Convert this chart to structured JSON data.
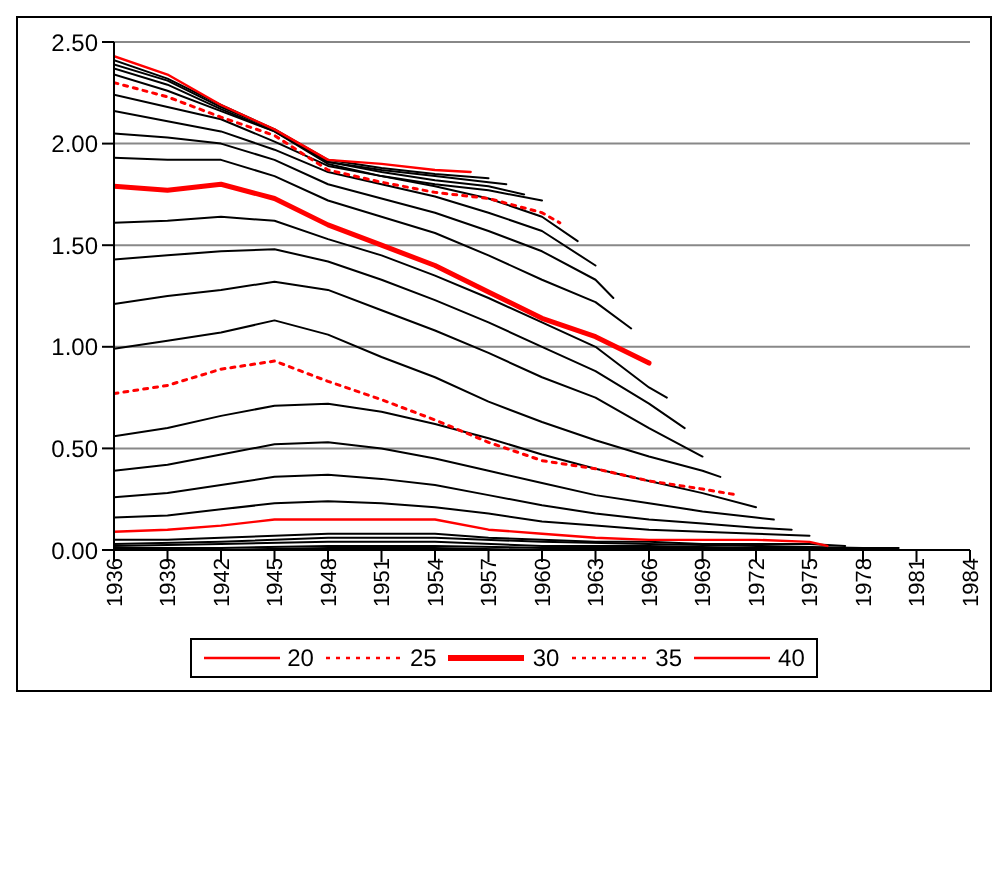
{
  "chart_data": {
    "type": "line",
    "xlim": [
      1936,
      1984
    ],
    "xticks": [
      1936,
      1939,
      1942,
      1945,
      1948,
      1951,
      1954,
      1957,
      1960,
      1963,
      1966,
      1969,
      1972,
      1975,
      1978,
      1981,
      1984
    ],
    "ylim": [
      0,
      2.5
    ],
    "yticks": [
      {
        "value": 0,
        "label": "0.00"
      },
      {
        "value": 0.5,
        "label": "0.50"
      },
      {
        "value": 1,
        "label": "1.00"
      },
      {
        "value": 1.5,
        "label": "1.50"
      },
      {
        "value": 2,
        "label": "2.00"
      },
      {
        "value": 2.5,
        "label": "2.50"
      }
    ],
    "grid": "y",
    "legend": "bottom",
    "marker": "none",
    "series": [
      {
        "color": "#000000",
        "x": [
          1936,
          1942,
          1948,
          1954,
          1960,
          1966,
          1972,
          1978,
          1981
        ],
        "values": [
          0.0,
          0.0,
          0.01,
          0.01,
          0.0,
          0.0,
          0.0,
          0.0,
          0.0
        ]
      },
      {
        "color": "#000000",
        "x": [
          1936,
          1942,
          1948,
          1954,
          1960,
          1966,
          1972,
          1978,
          1980
        ],
        "values": [
          0.01,
          0.01,
          0.02,
          0.02,
          0.01,
          0.01,
          0.01,
          0.01,
          0.01
        ]
      },
      {
        "color": "#000000",
        "x": [
          1936,
          1942,
          1948,
          1954,
          1960,
          1966,
          1972,
          1979
        ],
        "values": [
          0.02,
          0.03,
          0.04,
          0.04,
          0.02,
          0.02,
          0.01,
          0.01
        ]
      },
      {
        "color": "#000000",
        "x": [
          1936,
          1942,
          1948,
          1954,
          1960,
          1966,
          1972,
          1978
        ],
        "values": [
          0.03,
          0.04,
          0.06,
          0.06,
          0.04,
          0.03,
          0.02,
          0.01
        ]
      },
      {
        "color": "#000000",
        "x": [
          1936,
          1939,
          1942,
          1945,
          1948,
          1951,
          1954,
          1957,
          1960,
          1963,
          1966,
          1969,
          1972,
          1975,
          1977
        ],
        "values": [
          0.05,
          0.05,
          0.06,
          0.07,
          0.08,
          0.08,
          0.08,
          0.06,
          0.05,
          0.04,
          0.04,
          0.03,
          0.03,
          0.03,
          0.02
        ]
      },
      {
        "name": "20",
        "color": "#ff0000",
        "line_style": "solid",
        "x": [
          1936,
          1939,
          1942,
          1945,
          1948,
          1951,
          1954,
          1957,
          1960,
          1963,
          1966,
          1969,
          1972,
          1975,
          1976
        ],
        "values": [
          0.09,
          0.1,
          0.12,
          0.15,
          0.15,
          0.15,
          0.15,
          0.1,
          0.08,
          0.06,
          0.05,
          0.05,
          0.05,
          0.04,
          0.02
        ]
      },
      {
        "color": "#000000",
        "x": [
          1936,
          1939,
          1942,
          1945,
          1948,
          1951,
          1954,
          1957,
          1960,
          1963,
          1966,
          1969,
          1972,
          1975
        ],
        "values": [
          0.16,
          0.17,
          0.2,
          0.23,
          0.24,
          0.23,
          0.21,
          0.18,
          0.14,
          0.12,
          0.1,
          0.09,
          0.08,
          0.07
        ]
      },
      {
        "color": "#000000",
        "x": [
          1936,
          1939,
          1942,
          1945,
          1948,
          1951,
          1954,
          1957,
          1960,
          1963,
          1966,
          1969,
          1972,
          1974
        ],
        "values": [
          0.26,
          0.28,
          0.32,
          0.36,
          0.37,
          0.35,
          0.32,
          0.27,
          0.22,
          0.18,
          0.15,
          0.13,
          0.11,
          0.1
        ]
      },
      {
        "color": "#000000",
        "x": [
          1936,
          1939,
          1942,
          1945,
          1948,
          1951,
          1954,
          1957,
          1960,
          1963,
          1966,
          1969,
          1972,
          1973
        ],
        "values": [
          0.39,
          0.42,
          0.47,
          0.52,
          0.53,
          0.5,
          0.45,
          0.39,
          0.33,
          0.27,
          0.23,
          0.19,
          0.16,
          0.15
        ]
      },
      {
        "color": "#000000",
        "x": [
          1936,
          1939,
          1942,
          1945,
          1948,
          1951,
          1954,
          1957,
          1960,
          1963,
          1966,
          1969,
          1972
        ],
        "values": [
          0.56,
          0.6,
          0.66,
          0.71,
          0.72,
          0.68,
          0.62,
          0.55,
          0.47,
          0.4,
          0.34,
          0.28,
          0.21
        ]
      },
      {
        "name": "25",
        "color": "#ff0000",
        "line_style": "dotted",
        "x": [
          1936,
          1939,
          1942,
          1945,
          1948,
          1951,
          1954,
          1957,
          1960,
          1963,
          1966,
          1969,
          1971
        ],
        "values": [
          0.77,
          0.81,
          0.89,
          0.93,
          0.83,
          0.74,
          0.64,
          0.53,
          0.44,
          0.4,
          0.34,
          0.3,
          0.27
        ]
      },
      {
        "color": "#000000",
        "x": [
          1936,
          1939,
          1942,
          1945,
          1948,
          1951,
          1954,
          1957,
          1960,
          1963,
          1966,
          1969,
          1970
        ],
        "values": [
          0.99,
          1.03,
          1.07,
          1.13,
          1.06,
          0.95,
          0.85,
          0.73,
          0.63,
          0.54,
          0.46,
          0.39,
          0.36
        ]
      },
      {
        "color": "#000000",
        "x": [
          1936,
          1939,
          1942,
          1945,
          1948,
          1951,
          1954,
          1957,
          1960,
          1963,
          1966,
          1969
        ],
        "values": [
          1.21,
          1.25,
          1.28,
          1.32,
          1.28,
          1.18,
          1.08,
          0.97,
          0.85,
          0.75,
          0.6,
          0.46
        ]
      },
      {
        "color": "#000000",
        "x": [
          1936,
          1939,
          1942,
          1945,
          1948,
          1951,
          1954,
          1957,
          1960,
          1963,
          1966,
          1968
        ],
        "values": [
          1.43,
          1.45,
          1.47,
          1.48,
          1.42,
          1.33,
          1.23,
          1.12,
          1.0,
          0.88,
          0.72,
          0.6
        ]
      },
      {
        "color": "#000000",
        "x": [
          1936,
          1939,
          1942,
          1945,
          1948,
          1951,
          1954,
          1957,
          1960,
          1963,
          1966,
          1967
        ],
        "values": [
          1.61,
          1.62,
          1.64,
          1.62,
          1.53,
          1.45,
          1.35,
          1.24,
          1.12,
          1.0,
          0.8,
          0.75
        ]
      },
      {
        "name": "30",
        "color": "#ff0000",
        "line_style": "solid",
        "x": [
          1936,
          1939,
          1942,
          1945,
          1948,
          1951,
          1954,
          1957,
          1960,
          1963,
          1966
        ],
        "values": [
          1.79,
          1.77,
          1.8,
          1.73,
          1.6,
          1.5,
          1.4,
          1.27,
          1.14,
          1.05,
          0.92
        ]
      },
      {
        "color": "#000000",
        "x": [
          1936,
          1939,
          1942,
          1945,
          1948,
          1951,
          1954,
          1957,
          1960,
          1963,
          1965
        ],
        "values": [
          1.93,
          1.92,
          1.92,
          1.84,
          1.72,
          1.64,
          1.56,
          1.45,
          1.33,
          1.22,
          1.09
        ]
      },
      {
        "color": "#000000",
        "x": [
          1936,
          1939,
          1942,
          1945,
          1948,
          1951,
          1954,
          1957,
          1960,
          1963,
          1964
        ],
        "values": [
          2.05,
          2.03,
          2.0,
          1.92,
          1.8,
          1.73,
          1.66,
          1.57,
          1.47,
          1.33,
          1.24
        ]
      },
      {
        "color": "#000000",
        "x": [
          1936,
          1939,
          1942,
          1945,
          1948,
          1951,
          1954,
          1957,
          1960,
          1963
        ],
        "values": [
          2.16,
          2.11,
          2.06,
          1.97,
          1.86,
          1.8,
          1.74,
          1.66,
          1.57,
          1.4
        ]
      },
      {
        "color": "#000000",
        "x": [
          1936,
          1939,
          1942,
          1945,
          1948,
          1951,
          1954,
          1957,
          1960,
          1962
        ],
        "values": [
          2.24,
          2.18,
          2.12,
          2.01,
          1.89,
          1.84,
          1.79,
          1.73,
          1.64,
          1.52
        ]
      },
      {
        "name": "35",
        "color": "#ff0000",
        "line_style": "dotted",
        "x": [
          1936,
          1939,
          1942,
          1945,
          1948,
          1951,
          1954,
          1957,
          1960,
          1961
        ],
        "values": [
          2.3,
          2.23,
          2.13,
          2.04,
          1.87,
          1.81,
          1.76,
          1.73,
          1.66,
          1.61
        ]
      },
      {
        "color": "#000000",
        "x": [
          1936,
          1939,
          1942,
          1945,
          1948,
          1951,
          1954,
          1957,
          1960
        ],
        "values": [
          2.34,
          2.26,
          2.16,
          2.06,
          1.9,
          1.84,
          1.8,
          1.77,
          1.72
        ]
      },
      {
        "color": "#000000",
        "x": [
          1936,
          1939,
          1942,
          1945,
          1948,
          1951,
          1954,
          1957,
          1959
        ],
        "values": [
          2.37,
          2.29,
          2.17,
          2.06,
          1.91,
          1.86,
          1.82,
          1.79,
          1.75
        ]
      },
      {
        "color": "#000000",
        "x": [
          1936,
          1939,
          1942,
          1945,
          1948,
          1951,
          1954,
          1957,
          1958
        ],
        "values": [
          2.39,
          2.31,
          2.18,
          2.07,
          1.91,
          1.87,
          1.84,
          1.81,
          1.8
        ]
      },
      {
        "color": "#000000",
        "x": [
          1936,
          1939,
          1942,
          1945,
          1948,
          1951,
          1954,
          1957
        ],
        "values": [
          2.41,
          2.32,
          2.19,
          2.07,
          1.92,
          1.88,
          1.85,
          1.83
        ]
      },
      {
        "name": "40",
        "color": "#ff0000",
        "line_style": "solid",
        "x": [
          1936,
          1939,
          1942,
          1945,
          1948,
          1951,
          1954,
          1956
        ],
        "values": [
          2.43,
          2.34,
          2.19,
          2.07,
          1.92,
          1.9,
          1.87,
          1.86
        ]
      }
    ]
  }
}
